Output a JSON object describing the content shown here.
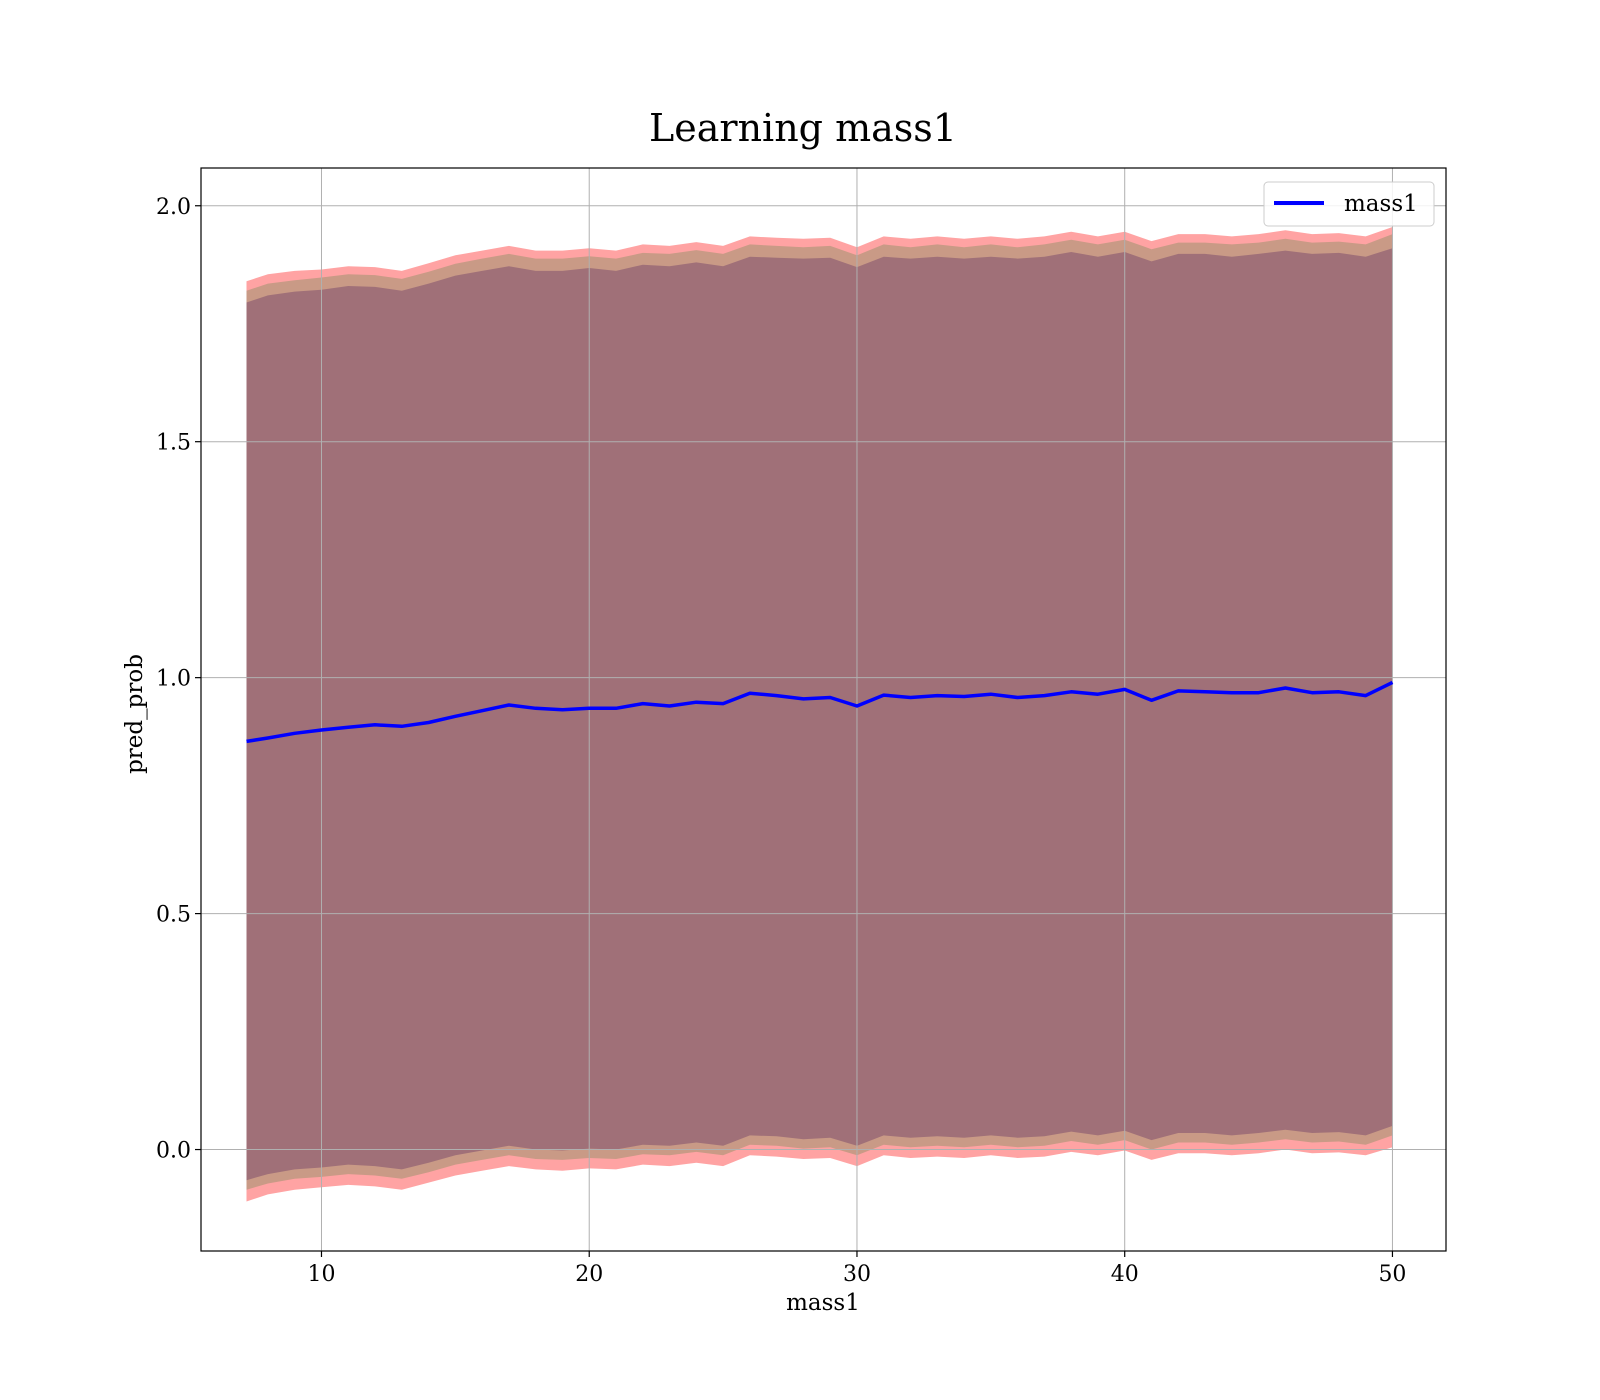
{
  "chart_data": {
    "type": "line",
    "title": "Learning mass1",
    "xlabel": "mass1",
    "ylabel": "pred_prob",
    "xlim": [
      5.5,
      52
    ],
    "ylim": [
      -0.215,
      2.08
    ],
    "xticks": [
      10,
      20,
      30,
      40,
      50
    ],
    "xtick_labels": [
      "10",
      "20",
      "30",
      "40",
      "50"
    ],
    "yticks": [
      0.0,
      0.5,
      1.0,
      1.5,
      2.0
    ],
    "ytick_labels": [
      "0.0",
      "0.5",
      "1.0",
      "1.5",
      "2.0"
    ],
    "grid": true,
    "legend": {
      "position": "top-right",
      "entries": [
        "mass1"
      ]
    },
    "colors": {
      "line": "#0000ff",
      "band_outer": "#ffa3a3",
      "band_middle": "#c99a86",
      "band_inner": "#a07078",
      "grid": "#b0b0b0"
    },
    "x": [
      7.2,
      8,
      9,
      10,
      11,
      12,
      13,
      14,
      15,
      16,
      17,
      18,
      19,
      20,
      21,
      22,
      23,
      24,
      25,
      26,
      27,
      28,
      29,
      30,
      31,
      32,
      33,
      34,
      35,
      36,
      37,
      38,
      39,
      40,
      41,
      42,
      43,
      44,
      45,
      46,
      47,
      48,
      49,
      50
    ],
    "series": [
      {
        "name": "mass1",
        "values": [
          0.865,
          0.872,
          0.882,
          0.889,
          0.895,
          0.9,
          0.897,
          0.905,
          0.918,
          0.93,
          0.942,
          0.935,
          0.932,
          0.935,
          0.935,
          0.945,
          0.94,
          0.948,
          0.945,
          0.967,
          0.962,
          0.955,
          0.958,
          0.94,
          0.963,
          0.958,
          0.962,
          0.96,
          0.965,
          0.958,
          0.962,
          0.97,
          0.965,
          0.975,
          0.952,
          0.972,
          0.97,
          0.968,
          0.968,
          0.978,
          0.968,
          0.97,
          0.962,
          0.99
        ]
      }
    ],
    "bands": [
      {
        "label": "outer",
        "upper": [
          1.84,
          1.855,
          1.862,
          1.865,
          1.872,
          1.87,
          1.862,
          1.878,
          1.895,
          1.905,
          1.915,
          1.905,
          1.905,
          1.91,
          1.905,
          1.918,
          1.915,
          1.923,
          1.915,
          1.935,
          1.932,
          1.93,
          1.932,
          1.912,
          1.935,
          1.93,
          1.935,
          1.93,
          1.935,
          1.93,
          1.935,
          1.945,
          1.935,
          1.945,
          1.925,
          1.94,
          1.94,
          1.935,
          1.94,
          1.948,
          1.94,
          1.942,
          1.935,
          1.955
        ],
        "lower": [
          -0.11,
          -0.095,
          -0.085,
          -0.08,
          -0.075,
          -0.078,
          -0.085,
          -0.07,
          -0.055,
          -0.045,
          -0.035,
          -0.042,
          -0.045,
          -0.04,
          -0.042,
          -0.032,
          -0.035,
          -0.028,
          -0.035,
          -0.012,
          -0.015,
          -0.02,
          -0.018,
          -0.035,
          -0.012,
          -0.018,
          -0.015,
          -0.018,
          -0.012,
          -0.018,
          -0.015,
          -0.005,
          -0.012,
          -0.002,
          -0.022,
          -0.008,
          -0.008,
          -0.012,
          -0.008,
          0.0,
          -0.008,
          -0.006,
          -0.012,
          0.005
        ]
      },
      {
        "label": "middle",
        "upper": [
          1.82,
          1.835,
          1.842,
          1.848,
          1.855,
          1.853,
          1.845,
          1.86,
          1.877,
          1.888,
          1.898,
          1.888,
          1.888,
          1.893,
          1.888,
          1.9,
          1.898,
          1.906,
          1.898,
          1.918,
          1.915,
          1.912,
          1.915,
          1.895,
          1.918,
          1.912,
          1.918,
          1.912,
          1.918,
          1.912,
          1.918,
          1.928,
          1.918,
          1.928,
          1.908,
          1.922,
          1.922,
          1.918,
          1.922,
          1.93,
          1.922,
          1.924,
          1.918,
          1.94
        ],
        "lower": [
          -0.085,
          -0.072,
          -0.062,
          -0.058,
          -0.052,
          -0.055,
          -0.062,
          -0.048,
          -0.032,
          -0.022,
          -0.012,
          -0.02,
          -0.022,
          -0.018,
          -0.02,
          -0.01,
          -0.012,
          -0.005,
          -0.012,
          0.01,
          0.008,
          0.002,
          0.005,
          -0.012,
          0.01,
          0.005,
          0.008,
          0.005,
          0.01,
          0.005,
          0.008,
          0.018,
          0.01,
          0.02,
          0.0,
          0.015,
          0.015,
          0.01,
          0.015,
          0.022,
          0.015,
          0.017,
          0.01,
          0.03
        ]
      },
      {
        "label": "inner",
        "upper": [
          1.795,
          1.81,
          1.818,
          1.822,
          1.83,
          1.828,
          1.82,
          1.835,
          1.852,
          1.862,
          1.872,
          1.862,
          1.862,
          1.868,
          1.862,
          1.875,
          1.872,
          1.88,
          1.872,
          1.892,
          1.89,
          1.888,
          1.89,
          1.87,
          1.892,
          1.888,
          1.892,
          1.888,
          1.892,
          1.888,
          1.892,
          1.902,
          1.892,
          1.902,
          1.882,
          1.898,
          1.898,
          1.892,
          1.898,
          1.905,
          1.898,
          1.9,
          1.892,
          1.91
        ],
        "lower": [
          -0.065,
          -0.052,
          -0.042,
          -0.038,
          -0.032,
          -0.035,
          -0.042,
          -0.028,
          -0.012,
          -0.002,
          0.008,
          0.0,
          -0.002,
          0.002,
          0.0,
          0.01,
          0.008,
          0.015,
          0.008,
          0.03,
          0.028,
          0.022,
          0.025,
          0.008,
          0.03,
          0.025,
          0.028,
          0.025,
          0.03,
          0.025,
          0.028,
          0.038,
          0.03,
          0.04,
          0.02,
          0.035,
          0.035,
          0.03,
          0.035,
          0.042,
          0.035,
          0.037,
          0.03,
          0.05
        ]
      }
    ]
  }
}
